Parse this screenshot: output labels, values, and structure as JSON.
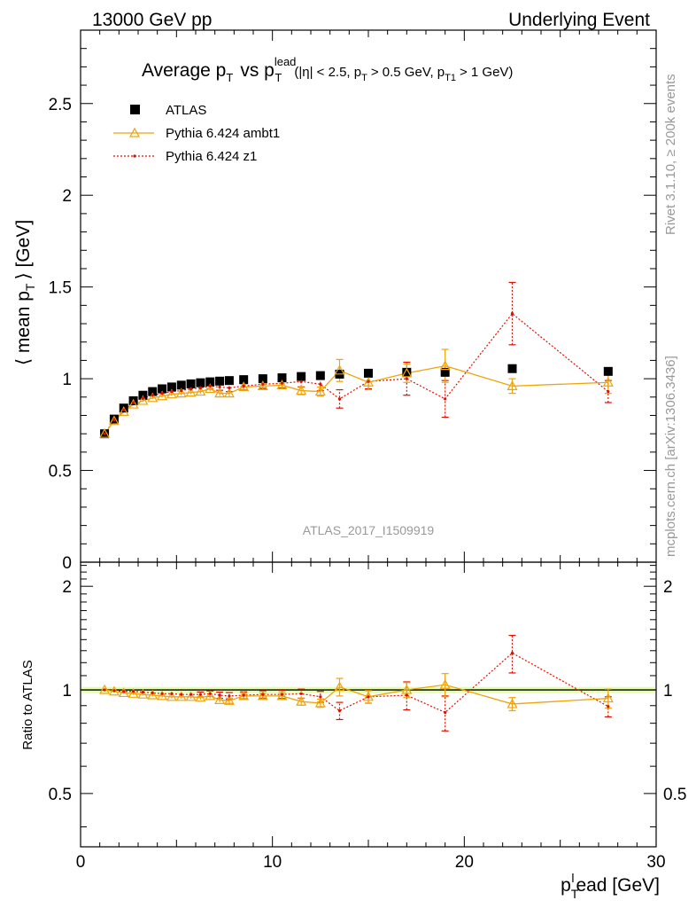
{
  "header": {
    "left": "13000 GeV pp",
    "right": "Underlying Event"
  },
  "side_labels": {
    "rivet": "Rivet 3.1.10, ≥ 200k events",
    "mcplots": "mcplots.cern.ch [arXiv:1306.3436]"
  },
  "watermark": "ATLAS_2017_I1509919",
  "colors": {
    "atlas": "#000000",
    "ambt1": "#f0a30a",
    "z1": "#dd1100",
    "band": "#ccff66"
  },
  "chart_data": [
    {
      "type": "scatter",
      "panel": "main",
      "title_parts": {
        "a": "Average p",
        "a_sub": "T",
        "b": "vs p",
        "b_sup": "lead",
        "b_sub": "T",
        "c": "(|η| < 2.5, p",
        "c_sub": "T",
        "d": "> 0.5 GeV, p",
        "d_sub": "T1",
        "e": "> 1 GeV)"
      },
      "ylabel_parts": {
        "pre": "⟨ mean p",
        "sub": "T",
        "post": "⟩ [GeV]"
      },
      "xlim": [
        0,
        30
      ],
      "ylim": [
        0,
        2.9
      ],
      "y_ticks": [
        "0",
        "0.5",
        "1",
        "1.5",
        "2",
        "2.5"
      ],
      "legend_position": "top-left",
      "series": [
        {
          "name": "ATLAS",
          "x": [
            1.25,
            1.75,
            2.25,
            2.75,
            3.25,
            3.75,
            4.25,
            4.75,
            5.25,
            5.75,
            6.25,
            6.75,
            7.25,
            7.75,
            8.5,
            9.5,
            10.5,
            11.5,
            12.5,
            13.5,
            15.0,
            17.0,
            19.0,
            22.5,
            27.5
          ],
          "y": [
            0.7,
            0.78,
            0.84,
            0.88,
            0.91,
            0.93,
            0.945,
            0.955,
            0.965,
            0.972,
            0.978,
            0.983,
            0.987,
            0.99,
            0.995,
            1.0,
            1.005,
            1.012,
            1.017,
            1.025,
            1.03,
            1.035,
            1.035,
            1.055,
            1.04
          ]
        },
        {
          "name": "Pythia 6.424 ambt1",
          "x": [
            1.25,
            1.75,
            2.25,
            2.75,
            3.25,
            3.75,
            4.25,
            4.75,
            5.25,
            5.75,
            6.25,
            6.75,
            7.25,
            7.75,
            8.5,
            9.5,
            10.5,
            11.5,
            12.5,
            13.5,
            15.0,
            17.0,
            19.0,
            22.5,
            27.5
          ],
          "y": [
            0.7,
            0.77,
            0.82,
            0.86,
            0.88,
            0.895,
            0.905,
            0.915,
            0.92,
            0.925,
            0.93,
            0.945,
            0.92,
            0.92,
            0.955,
            0.96,
            0.965,
            0.935,
            0.93,
            1.045,
            0.98,
            1.03,
            1.07,
            0.96,
            0.98
          ],
          "yerr": [
            0.005,
            0.005,
            0.005,
            0.006,
            0.006,
            0.007,
            0.008,
            0.009,
            0.01,
            0.01,
            0.012,
            0.013,
            0.014,
            0.015,
            0.016,
            0.018,
            0.02,
            0.022,
            0.025,
            0.06,
            0.04,
            0.05,
            0.09,
            0.04,
            0.06
          ]
        },
        {
          "name": "Pythia 6.424 z1",
          "x": [
            1.25,
            1.75,
            2.25,
            2.75,
            3.25,
            3.75,
            4.25,
            4.75,
            5.25,
            5.75,
            6.25,
            6.75,
            7.25,
            7.75,
            8.5,
            9.5,
            10.5,
            11.5,
            12.5,
            13.5,
            15.0,
            17.0,
            19.0,
            22.5,
            27.5
          ],
          "y": [
            0.7,
            0.775,
            0.83,
            0.87,
            0.895,
            0.91,
            0.92,
            0.93,
            0.935,
            0.945,
            0.95,
            0.96,
            0.955,
            0.95,
            0.96,
            0.97,
            0.975,
            0.985,
            0.97,
            0.89,
            0.985,
            1.0,
            0.89,
            1.355,
            0.93
          ],
          "yerr": [
            0.006,
            0.006,
            0.007,
            0.008,
            0.008,
            0.009,
            0.01,
            0.011,
            0.012,
            0.013,
            0.014,
            0.016,
            0.018,
            0.02,
            0.02,
            0.022,
            0.025,
            0.03,
            0.035,
            0.05,
            0.04,
            0.09,
            0.1,
            0.17,
            0.06
          ]
        }
      ]
    },
    {
      "type": "scatter",
      "panel": "ratio",
      "ylabel": "Ratio to ATLAS",
      "xlabel_parts": {
        "pre": "p",
        "sub": "T",
        "sup": "l",
        "post": "ead [GeV]"
      },
      "xlim": [
        0,
        30
      ],
      "ylim": [
        0.35,
        2.35
      ],
      "x_ticks": [
        "0",
        "10",
        "20",
        "30"
      ],
      "y_ticks": [
        "0.5",
        "1",
        "2"
      ],
      "reference": 1.0,
      "series": [
        {
          "name": "Pythia 6.424 ambt1",
          "x": [
            1.25,
            1.75,
            2.25,
            2.75,
            3.25,
            3.75,
            4.25,
            4.75,
            5.25,
            5.75,
            6.25,
            6.75,
            7.25,
            7.75,
            8.5,
            9.5,
            10.5,
            11.5,
            12.5,
            13.5,
            15.0,
            17.0,
            19.0,
            22.5,
            27.5
          ],
          "y": [
            1.0,
            0.99,
            0.98,
            0.975,
            0.97,
            0.965,
            0.96,
            0.955,
            0.955,
            0.955,
            0.95,
            0.96,
            0.935,
            0.93,
            0.96,
            0.96,
            0.96,
            0.925,
            0.915,
            1.02,
            0.955,
            1.0,
            1.035,
            0.91,
            0.945
          ],
          "yerr": [
            0.006,
            0.006,
            0.007,
            0.008,
            0.008,
            0.009,
            0.01,
            0.011,
            0.012,
            0.012,
            0.013,
            0.014,
            0.015,
            0.016,
            0.017,
            0.018,
            0.02,
            0.022,
            0.025,
            0.06,
            0.04,
            0.05,
            0.08,
            0.04,
            0.06
          ]
        },
        {
          "name": "Pythia 6.424 z1",
          "x": [
            1.25,
            1.75,
            2.25,
            2.75,
            3.25,
            3.75,
            4.25,
            4.75,
            5.25,
            5.75,
            6.25,
            6.75,
            7.25,
            7.75,
            8.5,
            9.5,
            10.5,
            11.5,
            12.5,
            13.5,
            15.0,
            17.0,
            19.0,
            22.5,
            27.5
          ],
          "y": [
            1.0,
            0.995,
            0.99,
            0.99,
            0.985,
            0.98,
            0.975,
            0.975,
            0.97,
            0.97,
            0.97,
            0.975,
            0.965,
            0.96,
            0.965,
            0.97,
            0.97,
            0.975,
            0.955,
            0.87,
            0.955,
            0.965,
            0.86,
            1.28,
            0.895
          ],
          "yerr": [
            0.008,
            0.008,
            0.009,
            0.01,
            0.01,
            0.011,
            0.012,
            0.013,
            0.014,
            0.015,
            0.016,
            0.018,
            0.02,
            0.022,
            0.022,
            0.024,
            0.026,
            0.03,
            0.035,
            0.05,
            0.04,
            0.09,
            0.1,
            0.16,
            0.06
          ]
        }
      ]
    }
  ]
}
